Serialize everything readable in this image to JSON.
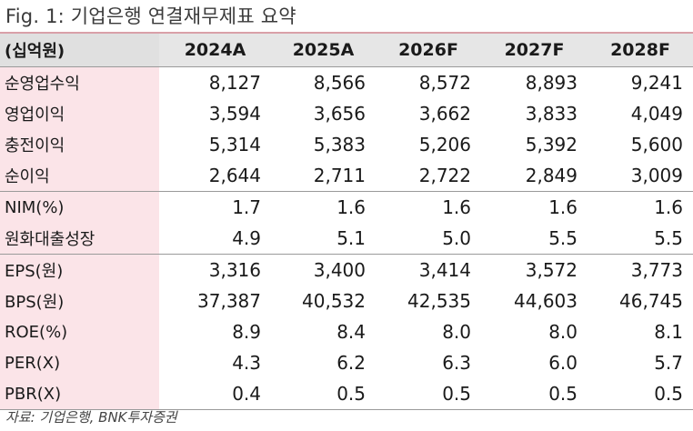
{
  "title": "Fig. 1: 기업은행 연결재무제표 요약",
  "unit": "(십억원)",
  "columns": [
    "2024A",
    "2025A",
    "2026F",
    "2027F",
    "2028F"
  ],
  "rows": [
    {
      "label": "순영업수익",
      "values": [
        "8,127",
        "8,566",
        "8,572",
        "8,893",
        "9,241"
      ]
    },
    {
      "label": "영업이익",
      "values": [
        "3,594",
        "3,656",
        "3,662",
        "3,833",
        "4,049"
      ]
    },
    {
      "label": "충전이익",
      "values": [
        "5,314",
        "5,383",
        "5,206",
        "5,392",
        "5,600"
      ]
    },
    {
      "label": "순이익",
      "values": [
        "2,644",
        "2,711",
        "2,722",
        "2,849",
        "3,009"
      ]
    },
    {
      "label": "NIM(%)",
      "values": [
        "1.7",
        "1.6",
        "1.6",
        "1.6",
        "1.6"
      ]
    },
    {
      "label": "원화대출성장",
      "values": [
        "4.9",
        "5.1",
        "5.0",
        "5.5",
        "5.5"
      ]
    },
    {
      "label": "EPS(원)",
      "values": [
        "3,316",
        "3,400",
        "3,414",
        "3,572",
        "3,773"
      ]
    },
    {
      "label": "BPS(원)",
      "values": [
        "37,387",
        "40,532",
        "42,535",
        "44,603",
        "46,745"
      ]
    },
    {
      "label": "ROE(%)",
      "values": [
        "8.9",
        "8.4",
        "8.0",
        "8.0",
        "8.1"
      ]
    },
    {
      "label": "PER(X)",
      "values": [
        "4.3",
        "6.2",
        "6.3",
        "6.0",
        "5.7"
      ]
    },
    {
      "label": "PBR(X)",
      "values": [
        "0.4",
        "0.5",
        "0.5",
        "0.5",
        "0.5"
      ]
    }
  ],
  "source": "자료: 기업은행, BNK투자증권",
  "colors": {
    "label_bg": "#fbe4e8",
    "header_bg": "#e6e6e6",
    "title_rule": "#d9a0a8"
  }
}
